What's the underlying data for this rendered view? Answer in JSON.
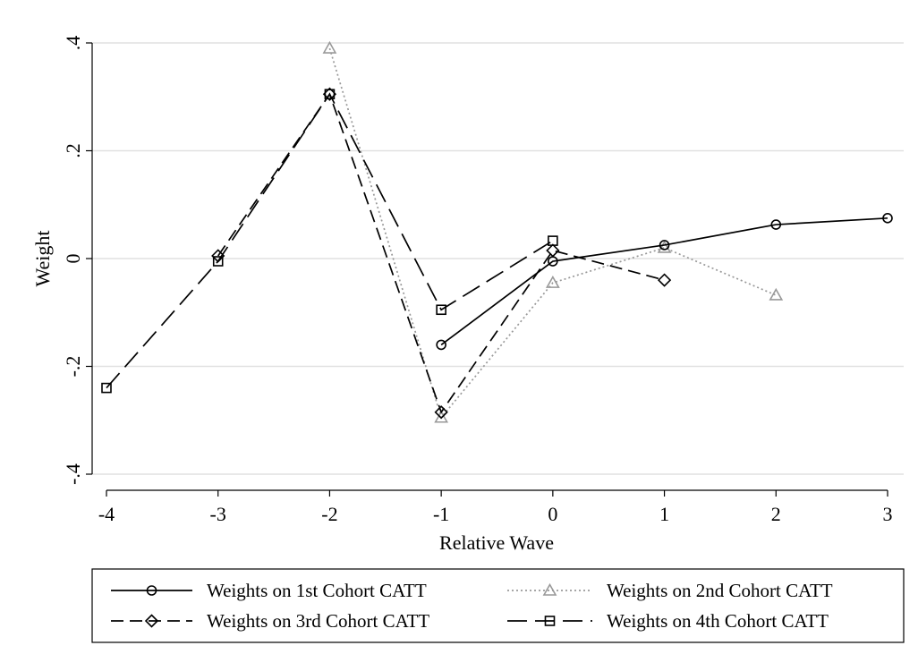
{
  "chart_data": {
    "type": "line",
    "title": "",
    "xlabel": "Relative Wave",
    "ylabel": "Weight",
    "xlim": [
      -4,
      3
    ],
    "ylim": [
      -0.4,
      0.4
    ],
    "xticks": [
      -4,
      -3,
      -2,
      -1,
      0,
      1,
      2,
      3
    ],
    "xtick_labels": [
      "-4",
      "-3",
      "-2",
      "-1",
      "0",
      "1",
      "2",
      "3"
    ],
    "yticks": [
      -0.4,
      -0.2,
      0,
      0.2,
      0.4
    ],
    "ytick_labels": [
      "-.4",
      "-.2",
      "0",
      ".2",
      ".4"
    ],
    "grid": "horizontal",
    "legend_position": "bottom",
    "series": [
      {
        "name": "Weights on 1st Cohort CATT",
        "color": "#000000",
        "dash": "solid",
        "marker": "circle",
        "x": [
          -1,
          0,
          1,
          2,
          3
        ],
        "y": [
          -0.16,
          -0.005,
          0.025,
          0.063,
          0.075
        ]
      },
      {
        "name": "Weights on 2nd Cohort CATT",
        "color": "#999999",
        "dash": "dotted",
        "marker": "triangle",
        "x": [
          -2,
          -1,
          0,
          1,
          2
        ],
        "y": [
          0.39,
          -0.295,
          -0.045,
          0.02,
          -0.068
        ]
      },
      {
        "name": "Weights on 3rd Cohort CATT",
        "color": "#000000",
        "dash": "dashed",
        "marker": "diamond",
        "x": [
          -3,
          -2,
          -1,
          0,
          1
        ],
        "y": [
          0.005,
          0.305,
          -0.285,
          0.015,
          -0.04
        ]
      },
      {
        "name": "Weights on 4th Cohort CATT",
        "color": "#000000",
        "dash": "longdash",
        "marker": "square",
        "x": [
          -4,
          -3,
          -2,
          -1,
          0
        ],
        "y": [
          -0.24,
          -0.005,
          0.305,
          -0.095,
          0.033
        ]
      }
    ]
  }
}
